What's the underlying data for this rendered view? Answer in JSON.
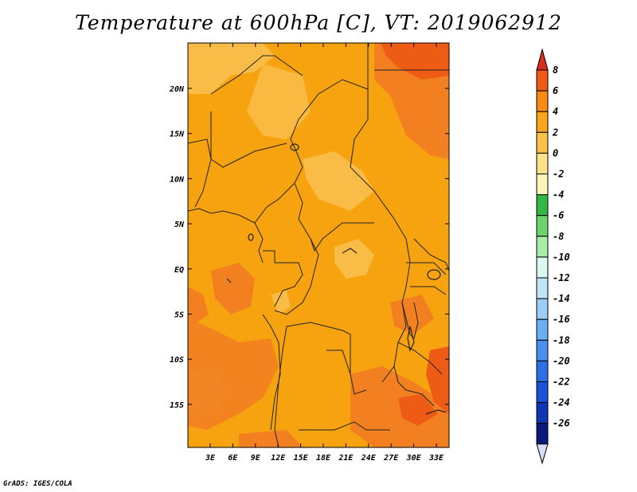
{
  "title": "Temperature at 600hPa [C], VT: 2019062912",
  "credit": "GrADS: IGES/COLA",
  "lat_labels": [
    "20N",
    "15N",
    "10N",
    "5N",
    "EQ",
    "5S",
    "10S",
    "15S"
  ],
  "lon_labels": [
    "3E",
    "6E",
    "9E",
    "12E",
    "15E",
    "18E",
    "21E",
    "24E",
    "27E",
    "30E",
    "33E"
  ],
  "colorbar": {
    "labels": [
      "8",
      "6",
      "4",
      "2",
      "0",
      "-2",
      "-4",
      "-6",
      "-8",
      "-10",
      "-12",
      "-14",
      "-16",
      "-18",
      "-20",
      "-22",
      "-24",
      "-26"
    ],
    "colors": [
      "#d6301c",
      "#f05a16",
      "#f98a12",
      "#fba51c",
      "#fbc24a",
      "#fde08a",
      "#fff4b8",
      "#33b845",
      "#6dd46d",
      "#a8eca8",
      "#dcf6f0",
      "#bfe6f6",
      "#9ccdf5",
      "#6aaef3",
      "#4a8ff0",
      "#2f6fe6",
      "#1a52d8",
      "#0f36b4",
      "#0a1a78",
      "#d9dcf5"
    ]
  },
  "map_colors": {
    "base": "#f7a30f",
    "light": "#f9bd47",
    "warm": "#f28020",
    "hot": "#ee5b14"
  }
}
